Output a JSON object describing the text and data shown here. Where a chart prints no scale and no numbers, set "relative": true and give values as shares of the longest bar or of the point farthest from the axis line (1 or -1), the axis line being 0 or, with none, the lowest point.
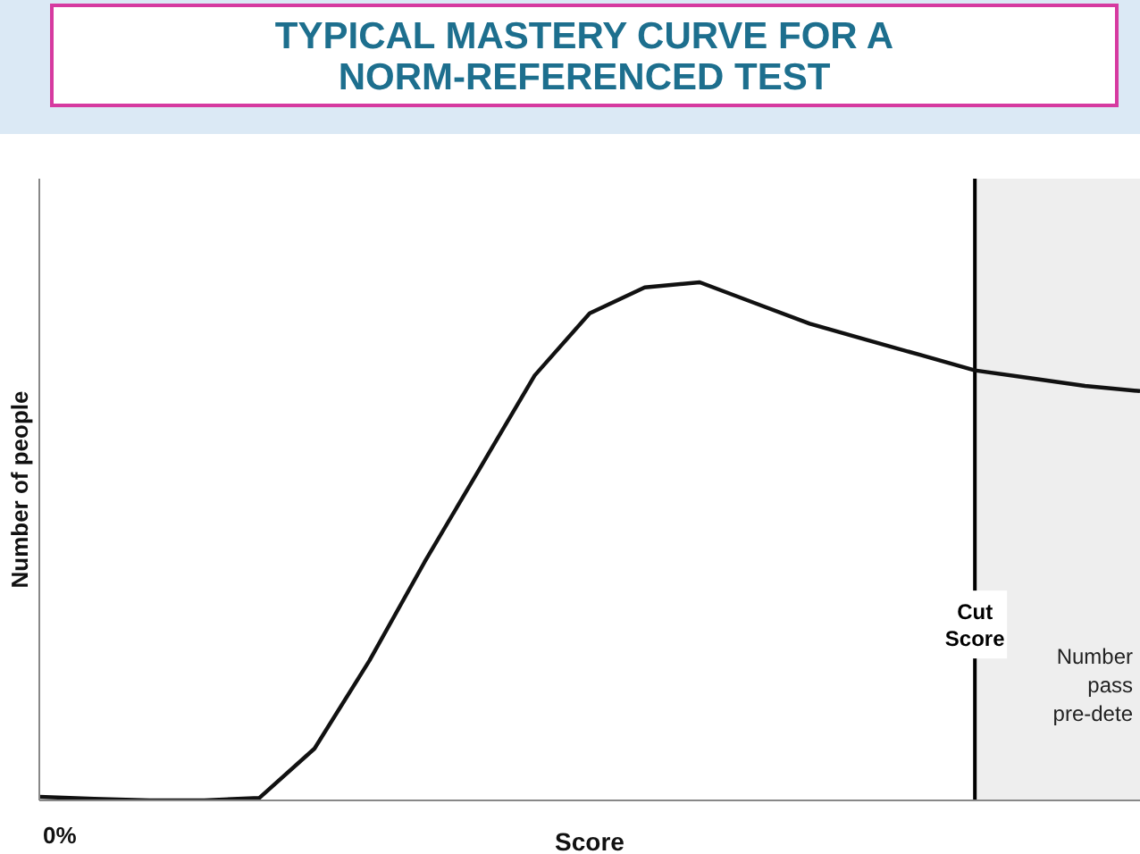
{
  "chart_data": {
    "type": "line",
    "title": "TYPICAL MASTERY CURVE FOR A NORM-REFERENCED TEST",
    "xlabel": "Score",
    "ylabel": "Number of people",
    "relative": true,
    "annotations": [
      "0%",
      "Cut Score",
      "Number\npass\npre-dete"
    ],
    "categories": [
      null,
      null,
      null,
      null,
      null,
      null,
      null,
      null,
      null,
      null,
      null,
      null,
      null,
      null,
      null,
      null,
      null,
      null,
      null,
      null,
      null
    ],
    "series": [
      {
        "color": "#111111",
        "values": [
          0.007,
          0.003,
          0,
          0,
          0.005,
          0.1,
          0.27,
          0.46,
          0.64,
          0.82,
          0.94,
          0.99,
          1,
          0.96,
          0.92,
          0.89,
          0.86,
          0.83,
          0.815,
          0.8,
          0.79
        ]
      }
    ],
    "grid": false,
    "legend": false,
    "marker": "none",
    "line_style": "solid"
  }
}
